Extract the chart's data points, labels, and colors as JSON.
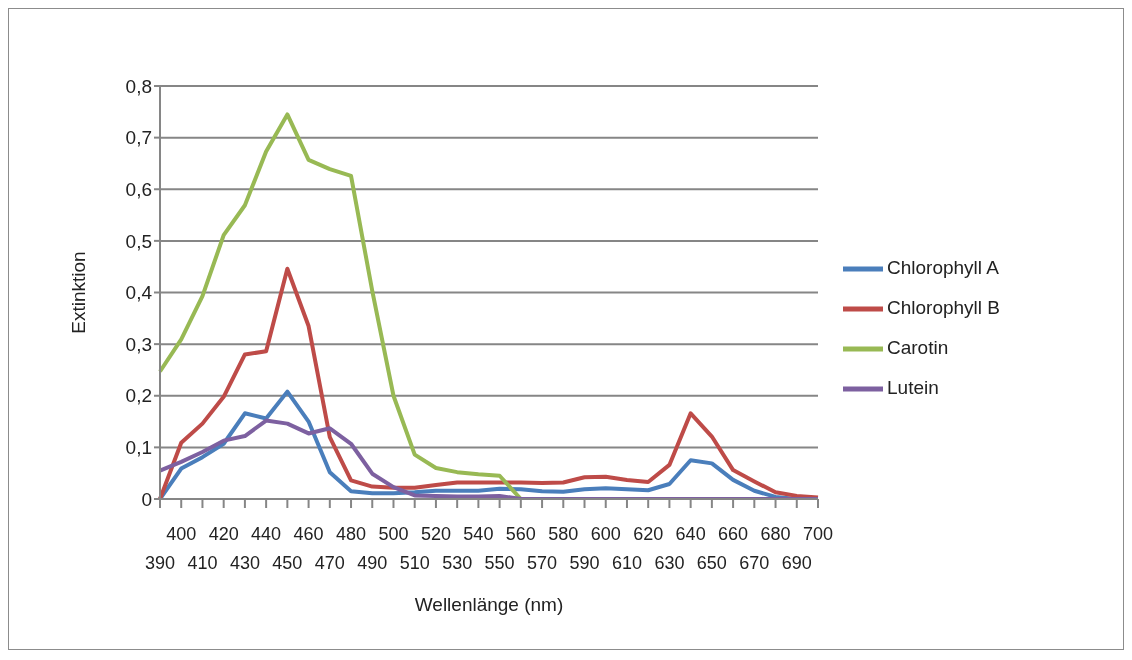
{
  "chart_data": {
    "type": "line",
    "xlabel": "Wellenlänge (nm)",
    "ylabel": "Extinktion",
    "categories": [
      "390",
      "400",
      "410",
      "420",
      "430",
      "440",
      "450",
      "460",
      "470",
      "480",
      "490",
      "500",
      "510",
      "520",
      "530",
      "540",
      "550",
      "560",
      "570",
      "580",
      "590",
      "600",
      "610",
      "620",
      "630",
      "640",
      "650",
      "660",
      "670",
      "680",
      "690",
      "700"
    ],
    "series": [
      {
        "name": "Chlorophyll A",
        "color": "#4a7ebb",
        "values": [
          0,
          0.059,
          0.081,
          0.107,
          0.166,
          0.156,
          0.208,
          0.15,
          0.052,
          0.015,
          0.011,
          0.011,
          0.013,
          0.016,
          0.016,
          0.016,
          0.02,
          0.019,
          0.015,
          0.014,
          0.019,
          0.021,
          0.019,
          0.017,
          0.029,
          0.075,
          0.069,
          0.037,
          0.016,
          0.004,
          0,
          0
        ]
      },
      {
        "name": "Chlorophyll B",
        "color": "#be4b48",
        "values": [
          0,
          0.109,
          0.146,
          0.198,
          0.28,
          0.286,
          0.446,
          0.335,
          0.12,
          0.036,
          0.024,
          0.022,
          0.022,
          0.027,
          0.032,
          0.032,
          0.032,
          0.032,
          0.031,
          0.032,
          0.042,
          0.043,
          0.037,
          0.033,
          0.066,
          0.166,
          0.121,
          0.056,
          0.034,
          0.013,
          0.006,
          0.003
        ]
      },
      {
        "name": "Carotin",
        "color": "#98b954",
        "values": [
          0.247,
          0.309,
          0.393,
          0.511,
          0.569,
          0.673,
          0.745,
          0.657,
          0.639,
          0.626,
          0.403,
          0.2,
          0.086,
          0.06,
          0.052,
          0.048,
          0.045,
          0,
          null,
          null,
          null,
          null,
          null,
          null,
          null,
          null,
          null,
          null,
          null,
          null,
          null,
          null
        ]
      },
      {
        "name": "Lutein",
        "color": "#7d60a0",
        "values": [
          0.055,
          0.072,
          0.091,
          0.113,
          0.122,
          0.152,
          0.146,
          0.127,
          0.137,
          0.107,
          0.049,
          0.023,
          0.007,
          0.006,
          0.005,
          0.005,
          0.006,
          0,
          0,
          0,
          0,
          0,
          0,
          0,
          0,
          0,
          0,
          0,
          0,
          0,
          0,
          0
        ]
      }
    ],
    "ylim": [
      0,
      0.8
    ],
    "yticks": [
      {
        "value": 0,
        "label": "0"
      },
      {
        "value": 0.1,
        "label": "0,1"
      },
      {
        "value": 0.2,
        "label": "0,2"
      },
      {
        "value": 0.3,
        "label": "0,3"
      },
      {
        "value": 0.4,
        "label": "0,4"
      },
      {
        "value": 0.5,
        "label": "0,5"
      },
      {
        "value": 0.6,
        "label": "0,6"
      },
      {
        "value": 0.7,
        "label": "0,7"
      },
      {
        "value": 0.8,
        "label": "0,8"
      }
    ],
    "grid": "y",
    "legend": "right",
    "marker": "none"
  }
}
